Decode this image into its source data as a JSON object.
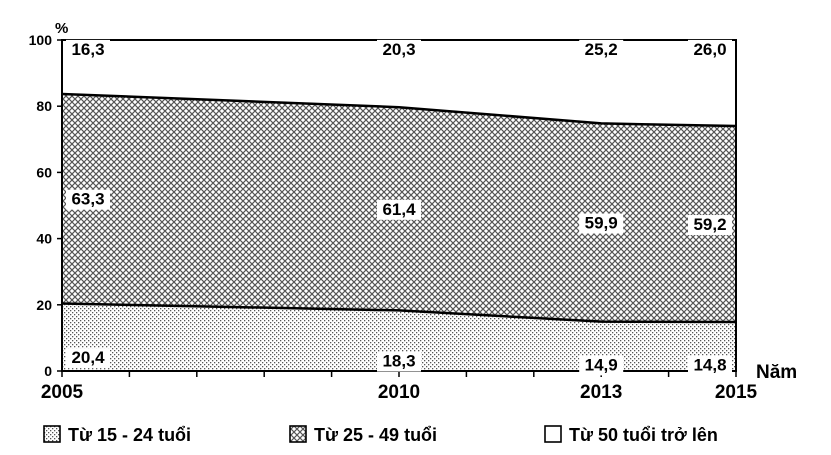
{
  "chart_data": {
    "type": "area",
    "stacked": true,
    "ylabel": "%",
    "xlabel": "Năm",
    "ylim": [
      0,
      100
    ],
    "yticks": [
      "0",
      "20",
      "40",
      "60",
      "80",
      "100"
    ],
    "x": [
      2005,
      2010,
      2013,
      2015
    ],
    "x_labels": [
      "2005",
      "2010",
      "2013",
      "2015"
    ],
    "series": [
      {
        "name": "Từ 15 - 24 tuổi",
        "values": [
          20.4,
          18.3,
          14.9,
          14.8
        ],
        "labels": [
          "20,4",
          "18,3",
          "14,9",
          "14,8"
        ],
        "pattern": "dots"
      },
      {
        "name": "Từ 25 - 49 tuổi",
        "values": [
          63.3,
          61.4,
          59.9,
          59.2
        ],
        "labels": [
          "63,3",
          "61,4",
          "59,9",
          "59,2"
        ],
        "pattern": "crosshatch"
      },
      {
        "name": "Từ 50 tuổi trở lên",
        "values": [
          16.3,
          20.3,
          25.2,
          26.0
        ],
        "labels": [
          "16,3",
          "20,3",
          "25,2",
          "26,0"
        ],
        "pattern": "none"
      }
    ],
    "legend_position": "bottom",
    "grid": false
  }
}
